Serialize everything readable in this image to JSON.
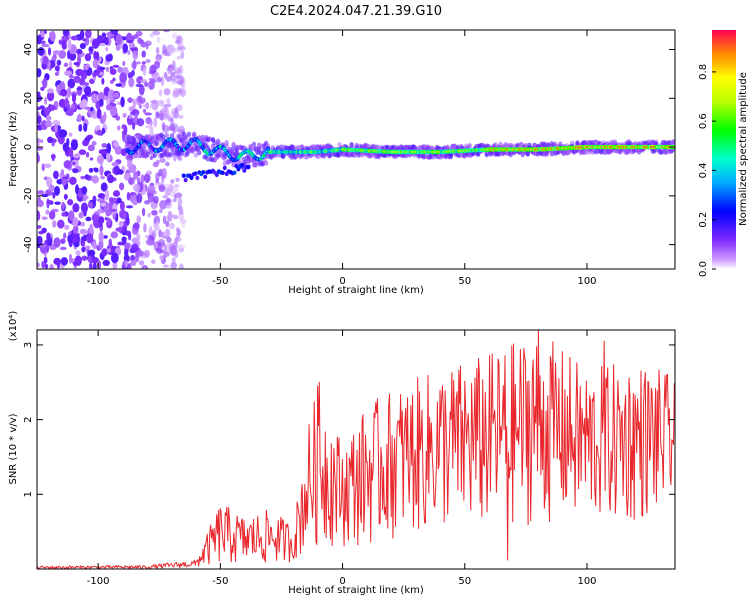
{
  "title": "C2E4.2024.047.21.39.G10",
  "chart_data": [
    {
      "type": "heatmap",
      "xlabel": "Height of straight line (km)",
      "ylabel": "Frequency (Hz)",
      "xlim": [
        -125,
        136
      ],
      "ylim": [
        -50,
        48
      ],
      "xticks": [
        -100,
        -50,
        0,
        50,
        100
      ],
      "yticks": [
        -40,
        -20,
        0,
        20,
        40
      ],
      "colorbar": {
        "label": "Normalized spectral amplitude",
        "range": [
          0.0,
          0.97
        ],
        "ticks": [
          0.0,
          0.2,
          0.4,
          0.6,
          0.8
        ],
        "tick_labels": [
          "0.0",
          "0.2",
          "0.4",
          "0.6",
          "0.8"
        ]
      },
      "grid": false,
      "ridge": [
        {
          "x": -85,
          "f": 0
        },
        {
          "x": -70,
          "f": 1
        },
        {
          "x": -60,
          "f": 1
        },
        {
          "x": -50,
          "f": -2
        },
        {
          "x": -40,
          "f": -4
        },
        {
          "x": -30,
          "f": -2
        },
        {
          "x": -20,
          "f": -2
        },
        {
          "x": -10,
          "f": -2
        },
        {
          "x": 0,
          "f": -1
        },
        {
          "x": 20,
          "f": -2
        },
        {
          "x": 40,
          "f": -2
        },
        {
          "x": 60,
          "f": -1
        },
        {
          "x": 80,
          "f": -1
        },
        {
          "x": 100,
          "f": 0
        },
        {
          "x": 136,
          "f": 0
        }
      ]
    },
    {
      "type": "line",
      "xlabel": "Height of straight line (km)",
      "ylabel": "SNR (10 * v/v)",
      "scale_note": "(x10⁴)",
      "xlim": [
        -125,
        136
      ],
      "ylim": [
        0,
        3.2
      ],
      "xticks": [
        -100,
        -50,
        0,
        50,
        100
      ],
      "yticks": [
        1,
        2,
        3
      ],
      "grid": false,
      "series": [
        {
          "color": "#e8262b",
          "envelope": [
            {
              "x": -125,
              "lo": 0.0,
              "hi": 0.04
            },
            {
              "x": -80,
              "lo": 0.0,
              "hi": 0.05
            },
            {
              "x": -60,
              "lo": 0.02,
              "hi": 0.12
            },
            {
              "x": -50,
              "lo": 0.05,
              "hi": 0.9
            },
            {
              "x": -40,
              "lo": 0.05,
              "hi": 0.7
            },
            {
              "x": -30,
              "lo": 0.05,
              "hi": 0.8
            },
            {
              "x": -20,
              "lo": 0.1,
              "hi": 0.6
            },
            {
              "x": -15,
              "lo": 0.2,
              "hi": 1.8
            },
            {
              "x": -10,
              "lo": 0.3,
              "hi": 2.5
            },
            {
              "x": 0,
              "lo": 0.3,
              "hi": 1.7
            },
            {
              "x": 10,
              "lo": 0.3,
              "hi": 2.2
            },
            {
              "x": 20,
              "lo": 0.4,
              "hi": 2.4
            },
            {
              "x": 40,
              "lo": 0.5,
              "hi": 2.7
            },
            {
              "x": 60,
              "lo": 0.5,
              "hi": 2.9
            },
            {
              "x": 80,
              "lo": 0.6,
              "hi": 3.2
            },
            {
              "x": 100,
              "lo": 0.6,
              "hi": 2.7
            },
            {
              "x": 120,
              "lo": 0.6,
              "hi": 2.8
            },
            {
              "x": 136,
              "lo": 0.8,
              "hi": 2.6
            }
          ],
          "peaks": [
            {
              "x": -9.4,
              "y": 2.5
            },
            {
              "x": 67.6,
              "y": 0.12
            },
            {
              "x": 80,
              "y": 3.2
            },
            {
              "x": 107,
              "y": 3.05
            },
            {
              "x": 78,
              "y": 2.8
            }
          ]
        }
      ]
    }
  ]
}
